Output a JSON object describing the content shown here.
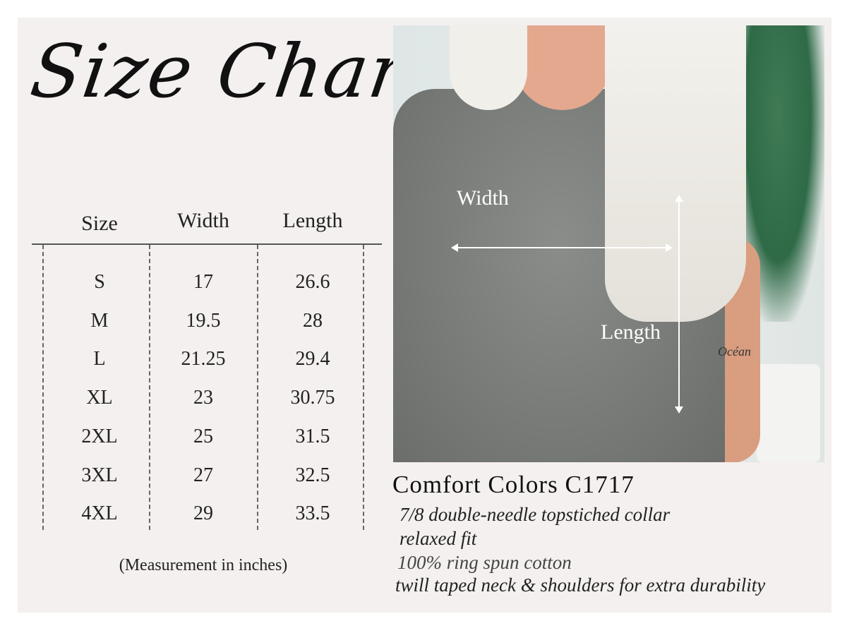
{
  "title": "Size Chart",
  "table": {
    "headers": [
      "Size",
      "Width",
      "Length"
    ],
    "rows": [
      [
        "S",
        "17",
        "26.6"
      ],
      [
        "M",
        "19.5",
        "28"
      ],
      [
        "L",
        "21.25",
        "29.4"
      ],
      [
        "XL",
        "23",
        "30.75"
      ],
      [
        "2XL",
        "25",
        "31.5"
      ],
      [
        "3XL",
        "27",
        "32.5"
      ],
      [
        "4XL",
        "29",
        "33.5"
      ]
    ],
    "note": "(Measurement in inches)"
  },
  "photo": {
    "width_label": "Width",
    "length_label": "Length",
    "tattoo_text": "Océan"
  },
  "product": {
    "name": "Comfort Colors C1717",
    "features": [
      "7/8 double-needle topstiched collar",
      "relaxed fit",
      "100% ring spun cotton",
      "twill taped neck & shoulders for extra durability"
    ]
  }
}
